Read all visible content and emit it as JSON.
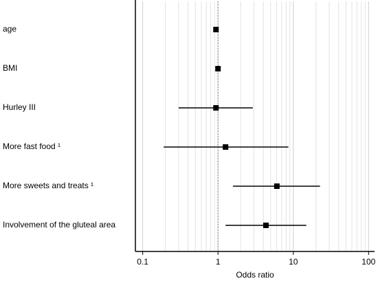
{
  "chart_data": {
    "type": "forest",
    "x_label": "Odds ratio",
    "x_log": true,
    "categories": [
      "age",
      "BMI",
      "Hurley III",
      "More fast food ¹",
      "More sweets and treats ¹",
      "Involvement of the gluteal area"
    ],
    "values": [
      0.94,
      1.0,
      0.94,
      1.26,
      6.05,
      4.33
    ],
    "ci_low": [
      null,
      null,
      0.3,
      0.19,
      1.58,
      1.26
    ],
    "ci_high": [
      null,
      null,
      2.9,
      8.6,
      22.6,
      14.9
    ],
    "color": "#000000",
    "xlim": [
      0.08,
      120
    ],
    "xticks": [
      0.1,
      1,
      10,
      100
    ],
    "xminorticks": [
      0.2,
      0.3,
      0.4,
      0.5,
      0.6,
      0.7,
      0.8,
      0.9,
      2,
      3,
      4,
      5,
      6,
      7,
      8,
      9,
      20,
      30,
      40,
      50,
      60,
      70,
      80,
      90
    ],
    "reference_line": 1,
    "grid": true
  }
}
